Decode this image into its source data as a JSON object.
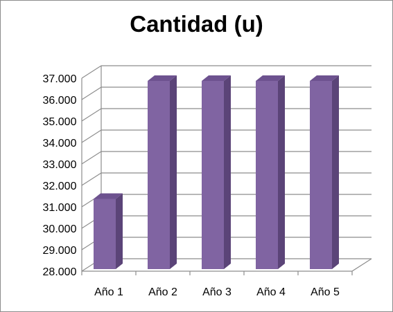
{
  "chart_data": {
    "type": "bar",
    "title": "Cantidad (u)",
    "categories": [
      "Año 1",
      "Año 2",
      "Año 3",
      "Año 4",
      "Año 5"
    ],
    "values": [
      31500,
      37000,
      37000,
      37000,
      37000
    ],
    "ylim": [
      28000,
      37000
    ],
    "yticks": [
      28000,
      29000,
      30000,
      31000,
      32000,
      33000,
      34000,
      35000,
      36000,
      37000
    ],
    "ytick_labels": [
      "28.000",
      "29.000",
      "30.000",
      "31.000",
      "32.000",
      "33.000",
      "34.000",
      "35.000",
      "36.000",
      "37.000"
    ],
    "grid": true,
    "legend": "none",
    "style": "3d-column",
    "colors": {
      "front": "#8064a2",
      "side": "#5b4478",
      "top": "#6d528f",
      "grid": "#8c8c8c"
    }
  }
}
